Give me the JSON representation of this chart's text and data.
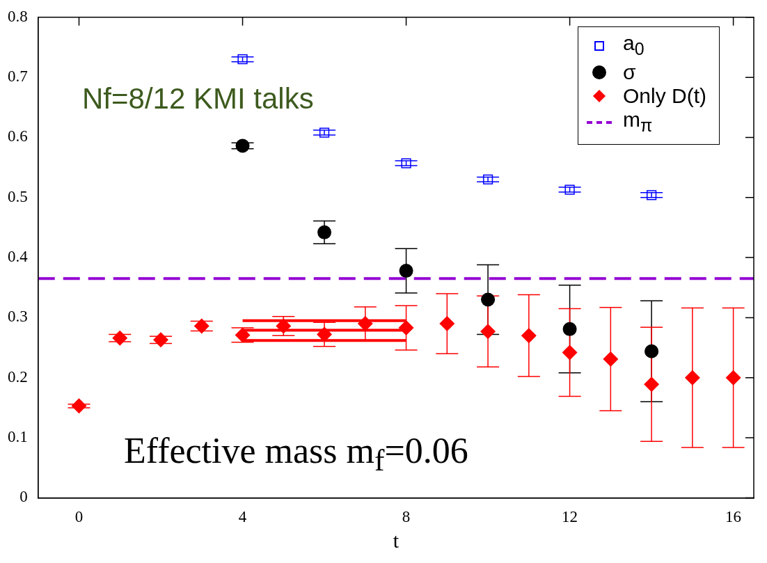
{
  "chart_data": {
    "type": "scatter",
    "xlabel": "t",
    "xlim": [
      -1,
      16.5
    ],
    "xticks": [
      0,
      4,
      8,
      12,
      16
    ],
    "ylim": [
      0,
      0.8
    ],
    "yticks": [
      0,
      0.1,
      0.2,
      0.3,
      0.4,
      0.5,
      0.6,
      0.7,
      0.8
    ],
    "grid": false,
    "legend": "top right",
    "annotations": [
      "Nf=8/12 KMI talks",
      "Effective mass m$_{f}$=0.06"
    ],
    "series": [
      {
        "name": "a$_{0}$",
        "type": "scatter",
        "marker": "square",
        "color": "#0000ff",
        "x": [
          4,
          6,
          8,
          10,
          12,
          14
        ],
        "values": [
          0.73,
          0.608,
          0.557,
          0.53,
          0.513,
          0.504
        ],
        "errors": [
          0.004,
          0.004,
          0.004,
          0.004,
          0.004,
          0.004
        ]
      },
      {
        "name": "σ",
        "type": "scatter",
        "marker": "circle",
        "color": "#000000",
        "x": [
          4,
          6,
          8,
          10,
          12,
          14
        ],
        "values": [
          0.586,
          0.442,
          0.378,
          0.33,
          0.281,
          0.244
        ],
        "errors": [
          0.005,
          0.019,
          0.037,
          0.058,
          0.073,
          0.084
        ]
      },
      {
        "name": "Only D(t)",
        "type": "scatter",
        "marker": "diamond",
        "color": "#ff0000",
        "x": [
          0,
          1,
          2,
          3,
          4,
          5,
          6,
          7,
          8,
          9,
          10,
          11,
          12,
          13,
          14,
          15,
          16
        ],
        "values": [
          0.153,
          0.266,
          0.263,
          0.286,
          0.271,
          0.286,
          0.272,
          0.29,
          0.283,
          0.29,
          0.277,
          0.27,
          0.242,
          0.231,
          0.189,
          0.2,
          0.2
        ],
        "errors": [
          0.003,
          0.006,
          0.006,
          0.008,
          0.012,
          0.016,
          0.02,
          0.028,
          0.037,
          0.05,
          0.059,
          0.068,
          0.073,
          0.086,
          0.095,
          0.116,
          0.116
        ]
      },
      {
        "name": "m$_{π}$",
        "type": "line",
        "line_style": "dashed",
        "marker": "none",
        "color": "#9400d3",
        "x": [
          -1,
          16.5
        ],
        "values": [
          0.365,
          0.365
        ]
      },
      {
        "type": "line",
        "marker": "none",
        "color": "#ff0000",
        "x": [
          4,
          8
        ],
        "values": [
          0.295,
          0.295
        ]
      },
      {
        "type": "line",
        "marker": "none",
        "color": "#ff0000",
        "x": [
          4,
          8
        ],
        "values": [
          0.279,
          0.279
        ]
      },
      {
        "type": "line",
        "marker": "none",
        "color": "#ff0000",
        "x": [
          4,
          8
        ],
        "values": [
          0.262,
          0.262
        ]
      }
    ]
  }
}
